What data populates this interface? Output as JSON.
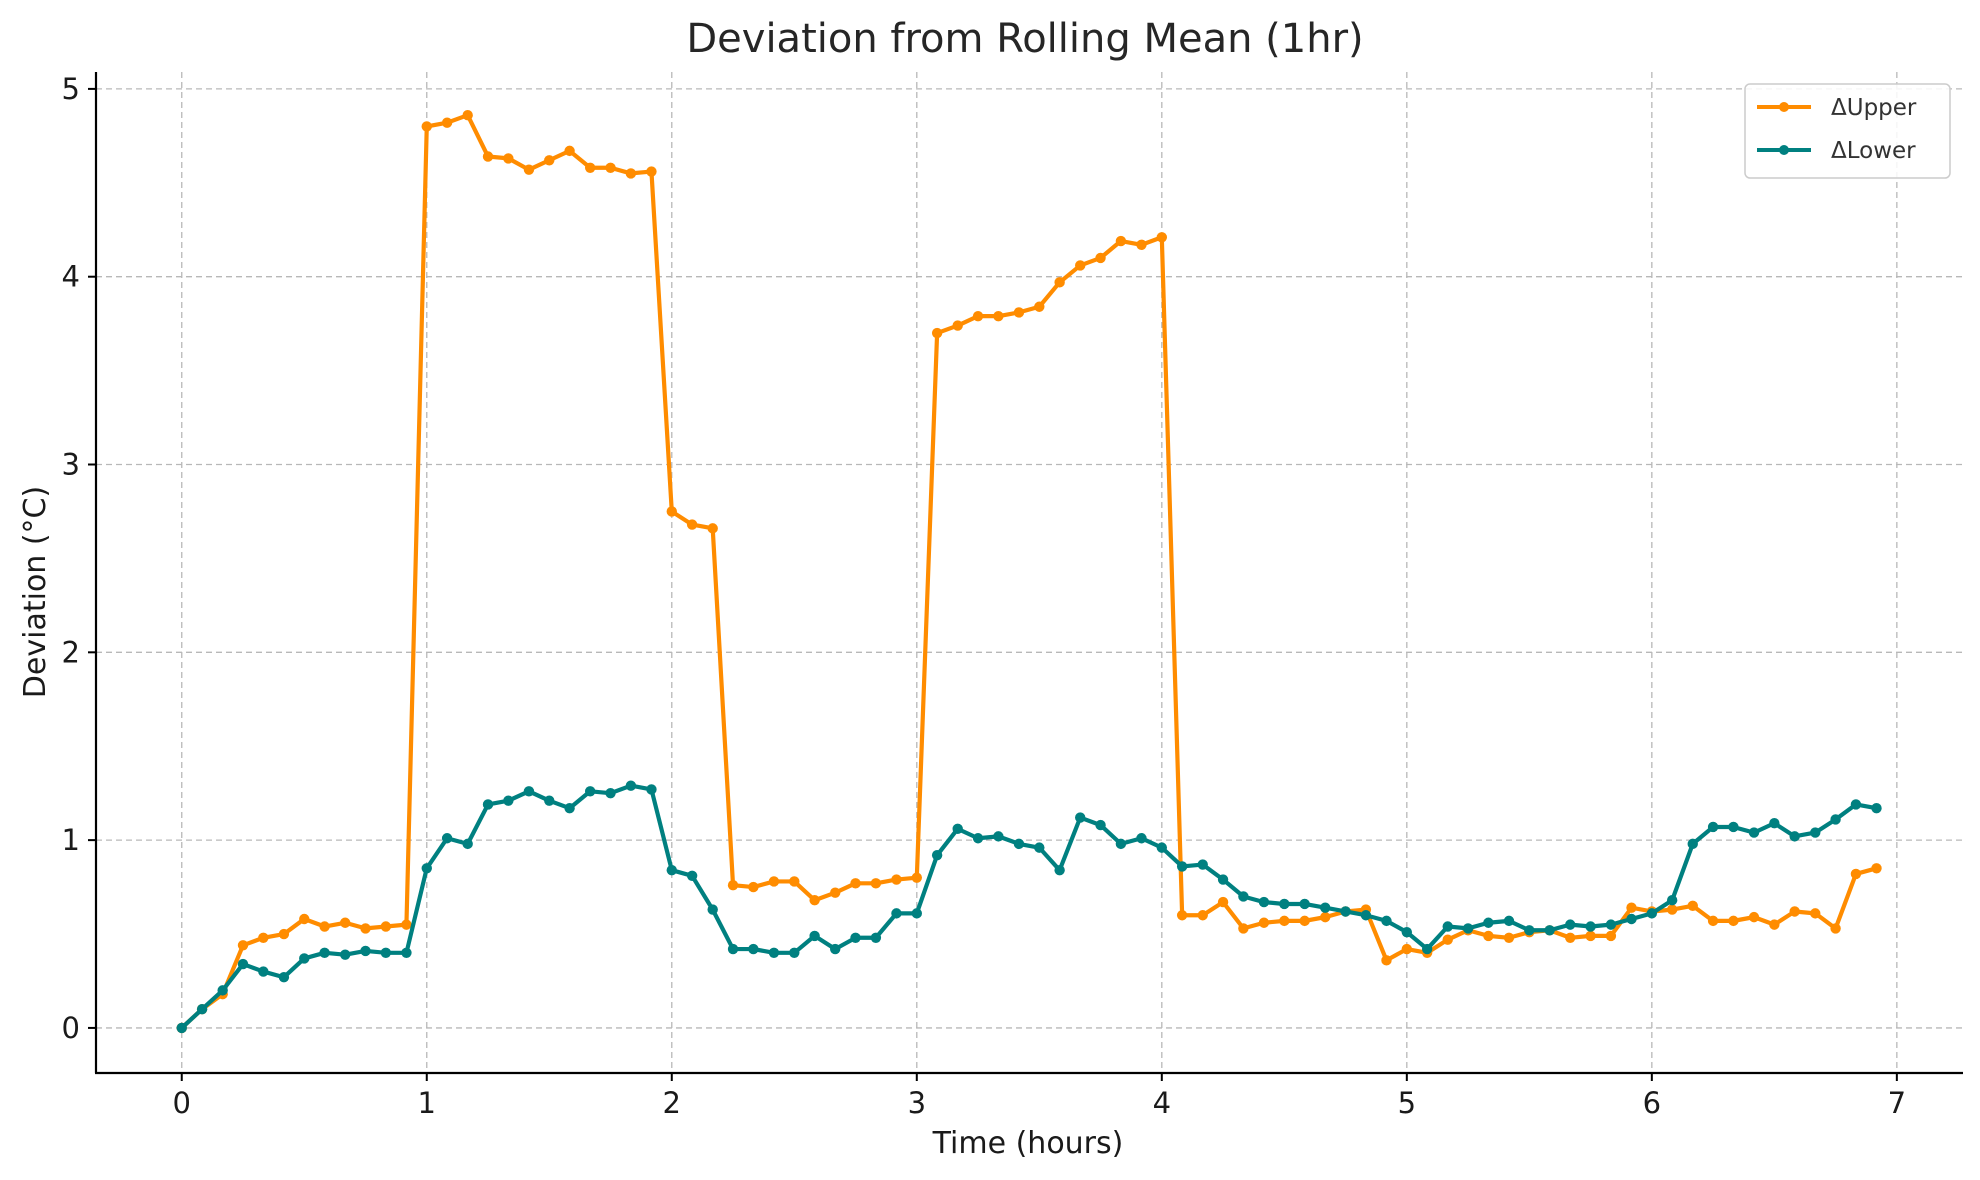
{
  "chart_data": {
    "type": "line",
    "title": "Deviation from Rolling Mean (1hr)",
    "xlabel": "Time (hours)",
    "ylabel": "Deviation (°C)",
    "xlim": [
      -0.35,
      7.27
    ],
    "ylim": [
      -0.24,
      5.09
    ],
    "xticks": [
      0,
      1,
      2,
      3,
      4,
      5,
      6,
      7
    ],
    "yticks": [
      0,
      1,
      2,
      3,
      4,
      5
    ],
    "grid": true,
    "legend_position": "top-right",
    "x": [
      0,
      0.083,
      0.167,
      0.25,
      0.333,
      0.417,
      0.5,
      0.583,
      0.667,
      0.75,
      0.833,
      0.917,
      1.0,
      1.083,
      1.167,
      1.25,
      1.333,
      1.417,
      1.5,
      1.583,
      1.667,
      1.75,
      1.833,
      1.917,
      2.0,
      2.083,
      2.167,
      2.25,
      2.333,
      2.417,
      2.5,
      2.583,
      2.667,
      2.75,
      2.833,
      2.917,
      3.0,
      3.083,
      3.167,
      3.25,
      3.333,
      3.417,
      3.5,
      3.583,
      3.667,
      3.75,
      3.833,
      3.917,
      4.0,
      4.083,
      4.167,
      4.25,
      4.333,
      4.417,
      4.5,
      4.583,
      4.667,
      4.75,
      4.833,
      4.917,
      5.0,
      5.083,
      5.167,
      5.25,
      5.333,
      5.417,
      5.5,
      5.583,
      5.667,
      5.75,
      5.833,
      5.917,
      6.0,
      6.083,
      6.167,
      6.25,
      6.333,
      6.417,
      6.5,
      6.583,
      6.667,
      6.75,
      6.833,
      6.917
    ],
    "series": [
      {
        "name": "ΔUpper",
        "color": "#ff8c00",
        "values": [
          0.0,
          0.1,
          0.18,
          0.44,
          0.48,
          0.5,
          0.58,
          0.54,
          0.56,
          0.53,
          0.54,
          0.55,
          4.8,
          4.82,
          4.86,
          4.64,
          4.63,
          4.57,
          4.62,
          4.67,
          4.58,
          4.58,
          4.55,
          4.56,
          2.75,
          2.68,
          2.66,
          0.76,
          0.75,
          0.78,
          0.78,
          0.68,
          0.72,
          0.77,
          0.77,
          0.79,
          0.8,
          3.7,
          3.74,
          3.79,
          3.79,
          3.81,
          3.84,
          3.97,
          4.06,
          4.1,
          4.19,
          4.17,
          4.21,
          0.6,
          0.6,
          0.67,
          0.53,
          0.56,
          0.57,
          0.57,
          0.59,
          0.62,
          0.63,
          0.36,
          0.42,
          0.4,
          0.47,
          0.52,
          0.49,
          0.48,
          0.51,
          0.52,
          0.48,
          0.49,
          0.49,
          0.64,
          0.62,
          0.63,
          0.65,
          0.57,
          0.57,
          0.59,
          0.55,
          0.62,
          0.61,
          0.53,
          0.82,
          0.85
        ]
      },
      {
        "name": "ΔLower",
        "color": "#008080",
        "values": [
          0.0,
          0.1,
          0.2,
          0.34,
          0.3,
          0.27,
          0.37,
          0.4,
          0.39,
          0.41,
          0.4,
          0.4,
          0.85,
          1.01,
          0.98,
          1.19,
          1.21,
          1.26,
          1.21,
          1.17,
          1.26,
          1.25,
          1.29,
          1.27,
          0.84,
          0.81,
          0.63,
          0.42,
          0.42,
          0.4,
          0.4,
          0.49,
          0.42,
          0.48,
          0.48,
          0.61,
          0.61,
          0.92,
          1.06,
          1.01,
          1.02,
          0.98,
          0.96,
          0.84,
          1.12,
          1.08,
          0.98,
          1.01,
          0.96,
          0.86,
          0.87,
          0.79,
          0.7,
          0.67,
          0.66,
          0.66,
          0.64,
          0.62,
          0.6,
          0.57,
          0.51,
          0.42,
          0.54,
          0.53,
          0.56,
          0.57,
          0.52,
          0.52,
          0.55,
          0.54,
          0.55,
          0.58,
          0.61,
          0.68,
          0.98,
          1.07,
          1.07,
          1.04,
          1.09,
          1.02,
          1.04,
          1.11,
          1.19,
          1.17
        ]
      }
    ]
  }
}
